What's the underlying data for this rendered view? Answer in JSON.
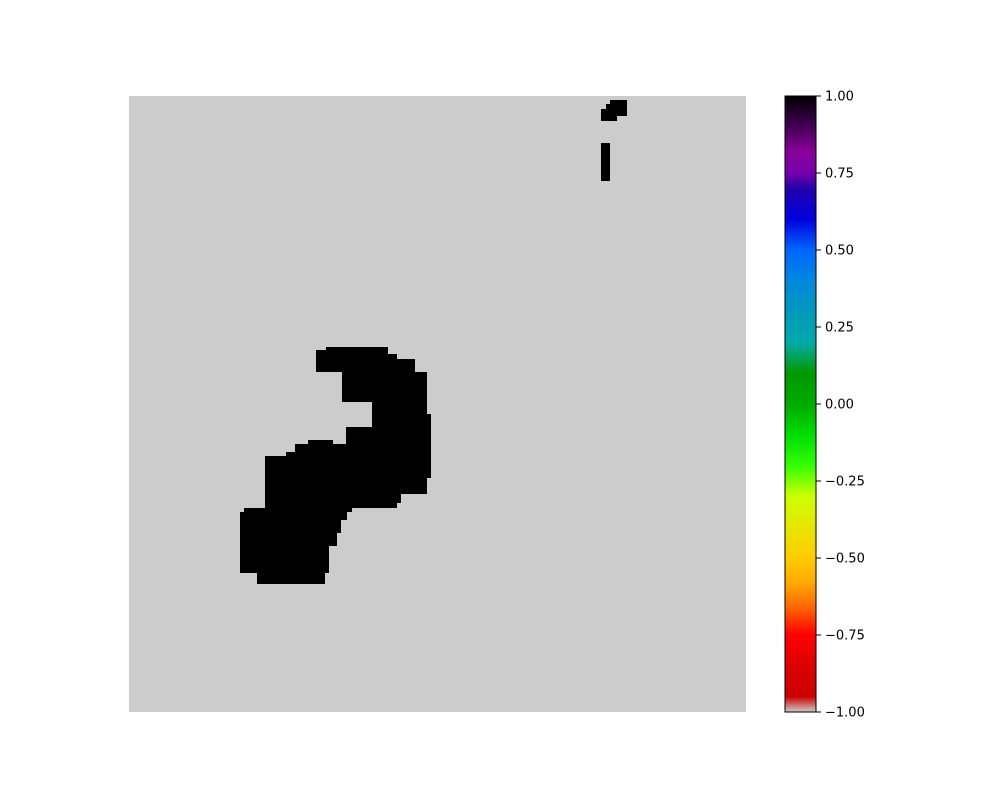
{
  "chart_data": {
    "type": "heatmap",
    "title": "",
    "xlabel": "",
    "ylabel": "",
    "axes_visible": false,
    "grid": false,
    "colormap": "nipy_spectral_r",
    "background_value": -1.0,
    "foreground_value": 1.0,
    "background_color": "#cccccc",
    "foreground_color": "#000000",
    "regions": [
      {
        "name": "main-blob",
        "value": 1.0
      },
      {
        "name": "small-blob-top",
        "value": 1.0
      },
      {
        "name": "small-bar",
        "value": 1.0
      }
    ],
    "colorbar": {
      "vmin": -1.0,
      "vmax": 1.0,
      "orientation": "vertical",
      "placement": "right",
      "ticks": [
        -1.0,
        -0.75,
        -0.5,
        -0.25,
        0.0,
        0.25,
        0.5,
        0.75,
        1.0
      ],
      "tick_labels": [
        "−1.00",
        "−0.75",
        "−0.50",
        "−0.25",
        "0.00",
        "0.25",
        "0.50",
        "0.75",
        "1.00"
      ],
      "stops": [
        {
          "v": -1.0,
          "color": "#cccccc"
        },
        {
          "v": -0.95,
          "color": "#cc0000"
        },
        {
          "v": -0.85,
          "color": "#dd0000"
        },
        {
          "v": -0.75,
          "color": "#ff0000"
        },
        {
          "v": -0.66,
          "color": "#ff6600"
        },
        {
          "v": -0.58,
          "color": "#ffaa00"
        },
        {
          "v": -0.5,
          "color": "#ffcc00"
        },
        {
          "v": -0.4,
          "color": "#e6e600"
        },
        {
          "v": -0.3,
          "color": "#ccff00"
        },
        {
          "v": -0.2,
          "color": "#33ff00"
        },
        {
          "v": -0.1,
          "color": "#00dd00"
        },
        {
          "v": 0.0,
          "color": "#00aa00"
        },
        {
          "v": 0.1,
          "color": "#009900"
        },
        {
          "v": 0.2,
          "color": "#00aaaa"
        },
        {
          "v": 0.3,
          "color": "#0099bb"
        },
        {
          "v": 0.4,
          "color": "#0088dd"
        },
        {
          "v": 0.5,
          "color": "#0066ff"
        },
        {
          "v": 0.6,
          "color": "#0000dd"
        },
        {
          "v": 0.7,
          "color": "#2200aa"
        },
        {
          "v": 0.75,
          "color": "#7700aa"
        },
        {
          "v": 0.82,
          "color": "#880099"
        },
        {
          "v": 0.9,
          "color": "#440055"
        },
        {
          "v": 1.0,
          "color": "#000000"
        }
      ]
    }
  }
}
